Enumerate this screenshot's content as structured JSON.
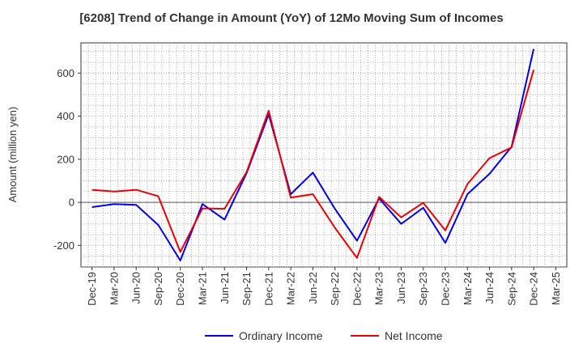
{
  "chart_data": {
    "type": "line",
    "title": "[6208]  Trend of Change in Amount (YoY) of 12Mo Moving Sum of Incomes",
    "xlabel": "",
    "ylabel": "Amount (million yen)",
    "ylim": [
      -300,
      740
    ],
    "yticks": [
      -200,
      0,
      200,
      400,
      600
    ],
    "grid": true,
    "legend_position": "bottom",
    "categories": [
      "Dec-19",
      "Mar-20",
      "Jun-20",
      "Sep-20",
      "Dec-20",
      "Mar-21",
      "Jun-21",
      "Sep-21",
      "Dec-21",
      "Mar-22",
      "Jun-22",
      "Sep-22",
      "Dec-22",
      "Mar-23",
      "Jun-23",
      "Sep-23",
      "Dec-23",
      "Mar-24",
      "Jun-24",
      "Sep-24",
      "Dec-24",
      "Mar-25"
    ],
    "series": [
      {
        "name": "Ordinary Income",
        "color": "#0000ee",
        "values": [
          -22,
          -8,
          -12,
          -105,
          -270,
          -8,
          -80,
          135,
          408,
          38,
          138,
          -30,
          -178,
          18,
          -100,
          -25,
          -188,
          38,
          132,
          258,
          712,
          null
        ]
      },
      {
        "name": "Net Income",
        "color": "#ee0000",
        "values": [
          58,
          50,
          58,
          28,
          -230,
          -28,
          -30,
          140,
          425,
          22,
          38,
          -118,
          -258,
          25,
          -70,
          -2,
          -130,
          85,
          205,
          255,
          615,
          null
        ]
      }
    ]
  }
}
